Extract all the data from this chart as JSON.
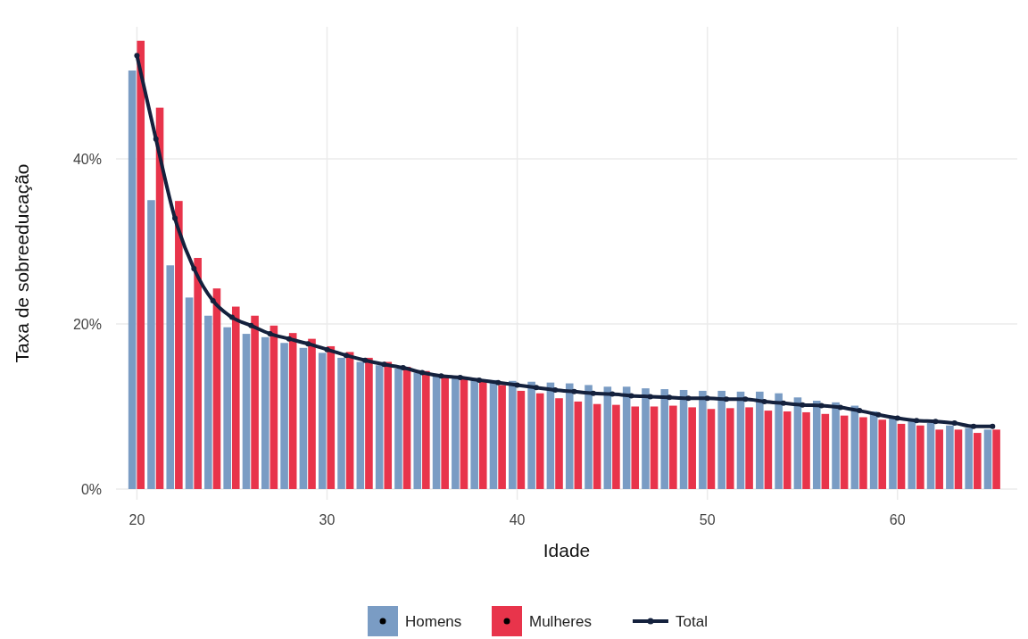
{
  "chart_data": {
    "type": "bar",
    "xlabel": "Idade",
    "ylabel": "Taxa de sobreeducação",
    "x": [
      20,
      21,
      22,
      23,
      24,
      25,
      26,
      27,
      28,
      29,
      30,
      31,
      32,
      33,
      34,
      35,
      36,
      37,
      38,
      39,
      40,
      41,
      42,
      43,
      44,
      45,
      46,
      47,
      48,
      49,
      50,
      51,
      52,
      53,
      54,
      55,
      56,
      57,
      58,
      59,
      60,
      61,
      62,
      63,
      64,
      65
    ],
    "series": [
      {
        "name": "Homens",
        "color": "#7a9cc4",
        "values": [
          50.7,
          35.0,
          27.1,
          23.2,
          21.0,
          19.6,
          18.8,
          18.4,
          17.7,
          17.1,
          16.5,
          15.9,
          15.4,
          15.0,
          14.6,
          14.1,
          13.8,
          13.5,
          13.3,
          13.2,
          13.1,
          13.0,
          12.9,
          12.8,
          12.6,
          12.4,
          12.4,
          12.2,
          12.1,
          12.0,
          11.9,
          11.9,
          11.8,
          11.8,
          11.6,
          11.1,
          10.7,
          10.5,
          10.1,
          9.4,
          8.8,
          8.2,
          8.0,
          7.7,
          7.4,
          7.2
        ]
      },
      {
        "name": "Mulheres",
        "color": "#e8344b",
        "values": [
          54.3,
          46.2,
          34.9,
          28.0,
          24.3,
          22.1,
          21.0,
          19.8,
          18.9,
          18.2,
          17.3,
          16.6,
          15.9,
          15.4,
          14.8,
          14.3,
          13.7,
          13.3,
          13.0,
          12.6,
          11.9,
          11.6,
          11.0,
          10.6,
          10.3,
          10.2,
          10.0,
          10.0,
          10.1,
          9.9,
          9.7,
          9.8,
          9.9,
          9.5,
          9.4,
          9.3,
          9.1,
          8.9,
          8.7,
          8.4,
          7.9,
          7.7,
          7.2,
          7.2,
          6.8,
          7.2
        ]
      },
      {
        "name": "Total",
        "type": "line",
        "color": "#14213d",
        "marker": "circle",
        "values": [
          52.5,
          42.4,
          32.8,
          26.7,
          22.8,
          20.8,
          19.8,
          18.8,
          18.2,
          17.6,
          16.9,
          16.2,
          15.6,
          15.1,
          14.7,
          14.1,
          13.7,
          13.5,
          13.2,
          12.9,
          12.6,
          12.3,
          12.0,
          11.8,
          11.6,
          11.5,
          11.3,
          11.2,
          11.1,
          11.0,
          11.0,
          10.9,
          10.9,
          10.6,
          10.4,
          10.2,
          10.1,
          9.9,
          9.5,
          9.0,
          8.6,
          8.3,
          8.2,
          8.0,
          7.6,
          7.6
        ]
      }
    ],
    "xlim": [
      18.9,
      66.3
    ],
    "xticks": [
      20,
      30,
      40,
      50,
      60
    ],
    "ylim": [
      -1.3,
      56
    ],
    "yticks": [
      {
        "value": 0,
        "label": "0%"
      },
      {
        "value": 20,
        "label": "20%"
      },
      {
        "value": 40,
        "label": "40%"
      }
    ],
    "grid": true,
    "legend": "bottom"
  }
}
